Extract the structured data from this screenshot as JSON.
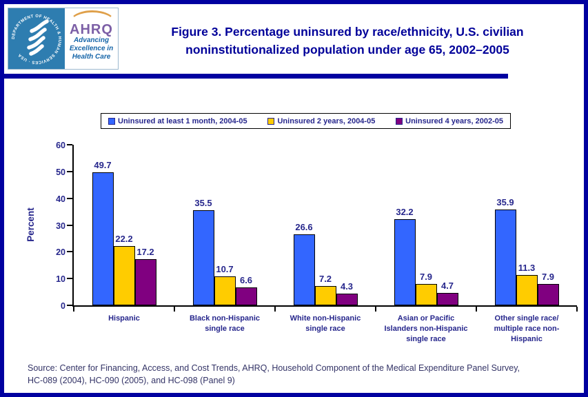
{
  "header": {
    "logo": {
      "seal_text": "DEPARTMENT OF HEALTH & HUMAN SERVICES · USA",
      "org": "AHRQ",
      "tagline_line1": "Advancing",
      "tagline_line2": "Excellence in",
      "tagline_line3": "Health Care"
    },
    "title_line1": "Figure 3. Percentage uninsured by race/ethnicity, U.S. civilian",
    "title_line2": "noninstitutionalized population under age 65, 2002–2005"
  },
  "chart_data": {
    "type": "bar",
    "title": "Figure 3. Percentage uninsured by race/ethnicity, U.S. civilian noninstitutionalized population under age 65, 2002–2005",
    "xlabel": "",
    "ylabel": "Percent",
    "ylim": [
      0,
      60
    ],
    "yticks": [
      0,
      10,
      20,
      30,
      40,
      50,
      60
    ],
    "grid": false,
    "legend_position": "top",
    "categories": [
      "Hispanic",
      "Black non-Hispanic single race",
      "White non-Hispanic single race",
      "Asian or Pacific Islanders non-Hispanic single race",
      "Other single race/ multiple race non-Hispanic"
    ],
    "categories_display": [
      [
        "Hispanic"
      ],
      [
        "Black non-Hispanic",
        "single race"
      ],
      [
        "White non-Hispanic",
        "single race"
      ],
      [
        "Asian or Pacific",
        "Islanders non-Hispanic",
        "single race"
      ],
      [
        "Other single race/",
        "multiple race non-",
        "Hispanic"
      ]
    ],
    "series": [
      {
        "name": "Uninsured at least 1 month, 2004-05",
        "color": "#3366FF",
        "values": [
          49.7,
          35.5,
          26.6,
          32.2,
          35.9
        ]
      },
      {
        "name": "Uninsured 2 years, 2004-05",
        "color": "#FFCC00",
        "values": [
          22.2,
          10.7,
          7.2,
          7.9,
          11.3
        ]
      },
      {
        "name": "Uninsured 4 years, 2002-05",
        "color": "#800080",
        "values": [
          17.2,
          6.6,
          4.3,
          4.7,
          7.9
        ]
      }
    ]
  },
  "source": {
    "line1": "Source: Center for Financing, Access, and Cost Trends, AHRQ, Household Component of the Medical Expenditure Panel Survey,",
    "line2": "HC-089 (2004), HC-090 (2005), and HC-098 (Panel 9)"
  },
  "colors": {
    "page_border": "#0000A0",
    "title_text": "#000099",
    "chart_text": "#26268C",
    "source_text": "#333366",
    "seal_background": "#2E7DB0"
  }
}
